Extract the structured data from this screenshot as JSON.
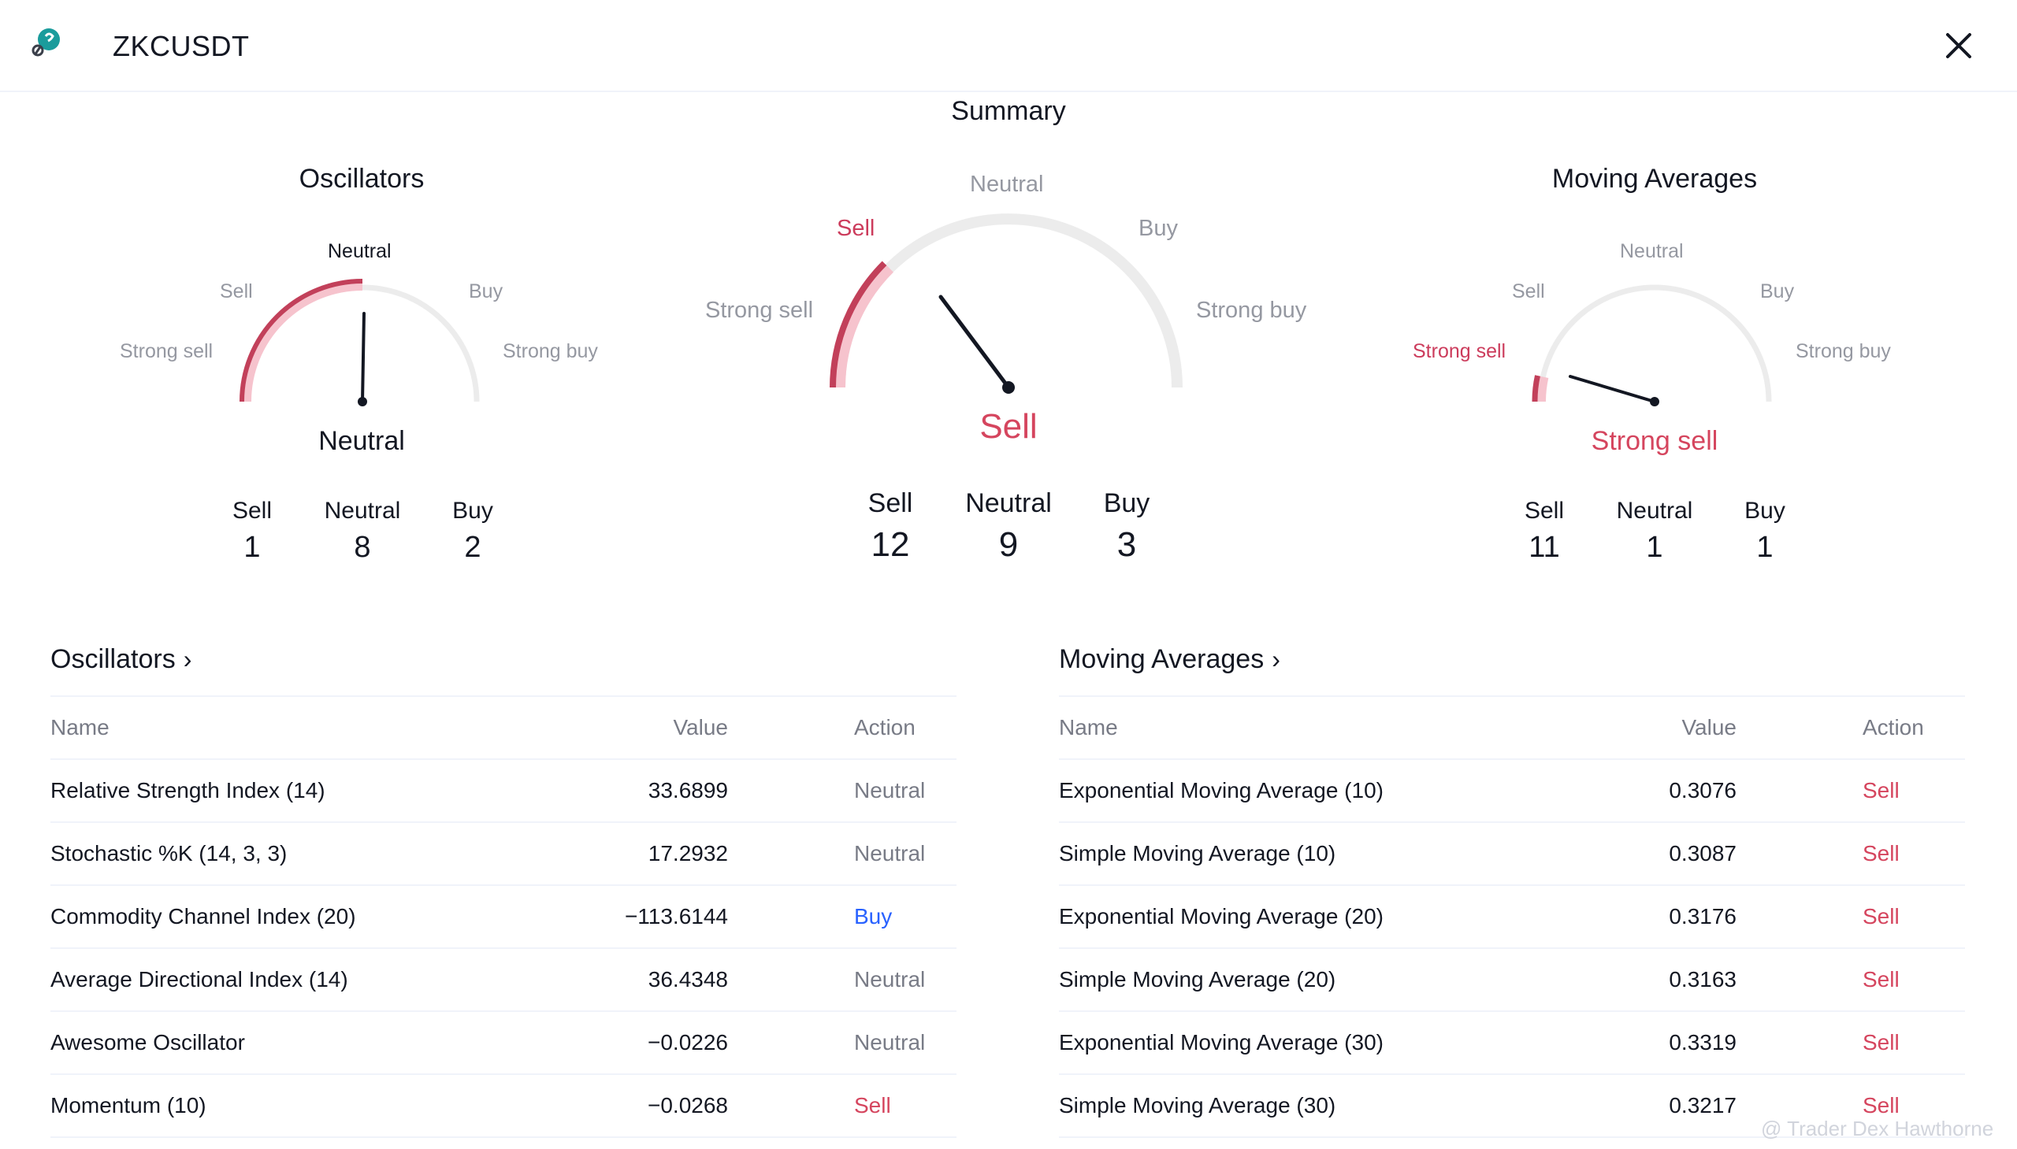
{
  "header": {
    "symbol": "ZKCUSDT",
    "logo_icon": "coin-logo-icon",
    "close_icon": "close-icon"
  },
  "summary_title": "Summary",
  "colors": {
    "sell": "#d5455e",
    "sell_light": "#f6c3cd",
    "buy": "#2962ff",
    "neutral": "#787b86",
    "track": "#ececec"
  },
  "gauges": {
    "oscillators": {
      "title": "Oscillators",
      "labels": {
        "strong_sell": "Strong sell",
        "sell": "Sell",
        "neutral": "Neutral",
        "buy": "Buy",
        "strong_buy": "Strong buy"
      },
      "verdict": "Neutral",
      "counts": {
        "sell_label": "Sell",
        "sell": "1",
        "neutral_label": "Neutral",
        "neutral": "8",
        "buy_label": "Buy",
        "buy": "2"
      }
    },
    "summary": {
      "labels": {
        "strong_sell": "Strong sell",
        "sell": "Sell",
        "neutral": "Neutral",
        "buy": "Buy",
        "strong_buy": "Strong buy"
      },
      "verdict": "Sell",
      "counts": {
        "sell_label": "Sell",
        "sell": "12",
        "neutral_label": "Neutral",
        "neutral": "9",
        "buy_label": "Buy",
        "buy": "3"
      }
    },
    "moving_averages": {
      "title": "Moving Averages",
      "labels": {
        "strong_sell": "Strong sell",
        "sell": "Sell",
        "neutral": "Neutral",
        "buy": "Buy",
        "strong_buy": "Strong buy"
      },
      "verdict": "Strong sell",
      "counts": {
        "sell_label": "Sell",
        "sell": "11",
        "neutral_label": "Neutral",
        "neutral": "1",
        "buy_label": "Buy",
        "buy": "1"
      }
    }
  },
  "oscillators_table": {
    "title": "Oscillators",
    "headers": {
      "name": "Name",
      "value": "Value",
      "action": "Action"
    },
    "rows": [
      {
        "name": "Relative Strength Index (14)",
        "value": "33.6899",
        "action": "Neutral",
        "kind": "neutral"
      },
      {
        "name": "Stochastic %K (14, 3, 3)",
        "value": "17.2932",
        "action": "Neutral",
        "kind": "neutral"
      },
      {
        "name": "Commodity Channel Index (20)",
        "value": "−113.6144",
        "action": "Buy",
        "kind": "buy"
      },
      {
        "name": "Average Directional Index (14)",
        "value": "36.4348",
        "action": "Neutral",
        "kind": "neutral"
      },
      {
        "name": "Awesome Oscillator",
        "value": "−0.0226",
        "action": "Neutral",
        "kind": "neutral"
      },
      {
        "name": "Momentum (10)",
        "value": "−0.0268",
        "action": "Sell",
        "kind": "sell"
      }
    ]
  },
  "ma_table": {
    "title": "Moving Averages",
    "headers": {
      "name": "Name",
      "value": "Value",
      "action": "Action"
    },
    "rows": [
      {
        "name": "Exponential Moving Average (10)",
        "value": "0.3076",
        "action": "Sell",
        "kind": "sell"
      },
      {
        "name": "Simple Moving Average (10)",
        "value": "0.3087",
        "action": "Sell",
        "kind": "sell"
      },
      {
        "name": "Exponential Moving Average (20)",
        "value": "0.3176",
        "action": "Sell",
        "kind": "sell"
      },
      {
        "name": "Simple Moving Average (20)",
        "value": "0.3163",
        "action": "Sell",
        "kind": "sell"
      },
      {
        "name": "Exponential Moving Average (30)",
        "value": "0.3319",
        "action": "Sell",
        "kind": "sell"
      },
      {
        "name": "Simple Moving Average (30)",
        "value": "0.3217",
        "action": "Sell",
        "kind": "sell"
      }
    ]
  },
  "watermark": "@ Trader Dex Hawthorne"
}
